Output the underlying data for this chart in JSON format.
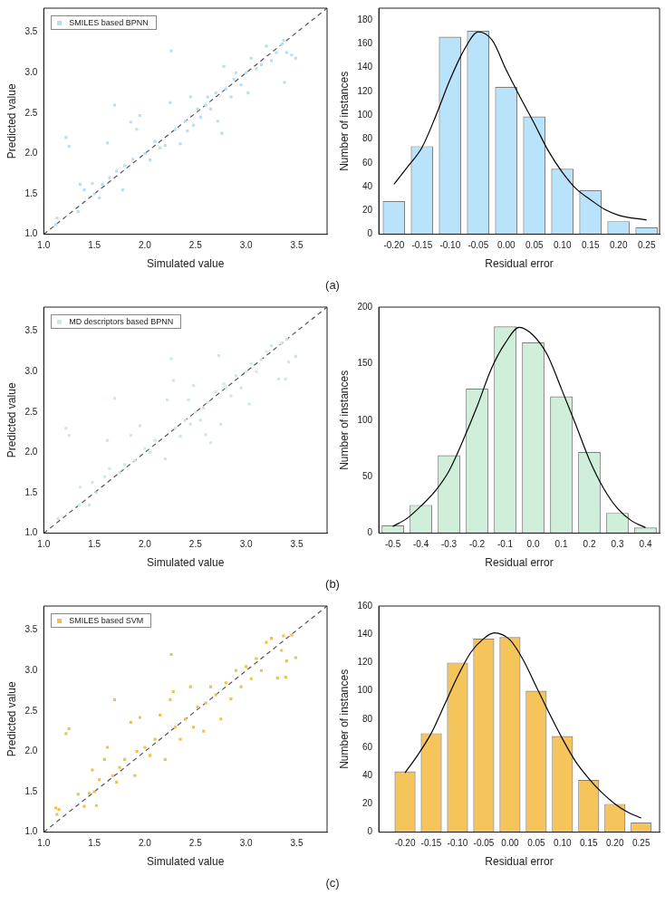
{
  "chart_data": [
    {
      "type": "scatter",
      "xlabel": "Simulated value",
      "ylabel": "Predicted value",
      "xlim": [
        1.0,
        3.8
      ],
      "ylim": [
        1.0,
        3.8
      ],
      "xticks": [
        {
          "value": 1.0,
          "label": "1.0"
        },
        {
          "value": 1.5,
          "label": "1.5"
        },
        {
          "value": 2.0,
          "label": "2.0"
        },
        {
          "value": 2.5,
          "label": "2.5"
        },
        {
          "value": 3.0,
          "label": "3.0"
        },
        {
          "value": 3.5,
          "label": "3.5"
        }
      ],
      "yticks": [
        {
          "value": 1.0,
          "label": "1.0"
        },
        {
          "value": 1.5,
          "label": "1.5"
        },
        {
          "value": 2.0,
          "label": "2.0"
        },
        {
          "value": 2.5,
          "label": "2.5"
        },
        {
          "value": 3.0,
          "label": "3.0"
        },
        {
          "value": 3.5,
          "label": "3.5"
        }
      ],
      "grid": false,
      "legend": "top left",
      "marker": "square",
      "annotations": [
        "(a)"
      ],
      "series": [
        {
          "name": "SMILES based BPNN",
          "color": "#b3dff8",
          "x": [
            1.12,
            1.13,
            1.22,
            1.25,
            1.34,
            1.36,
            1.4,
            1.48,
            1.5,
            1.55,
            1.58,
            1.63,
            1.65,
            1.7,
            1.72,
            1.78,
            1.8,
            1.86,
            1.88,
            1.92,
            1.95,
            2.0,
            2.05,
            2.1,
            2.15,
            2.2,
            2.25,
            2.26,
            2.3,
            2.35,
            2.4,
            2.45,
            2.48,
            2.52,
            2.55,
            2.6,
            2.65,
            2.7,
            2.72,
            2.76,
            2.78,
            2.8,
            2.85,
            2.9,
            2.95,
            3.0,
            3.02,
            3.05,
            3.1,
            3.15,
            3.2,
            3.25,
            3.3,
            3.35,
            3.38,
            3.4,
            3.45,
            3.49,
            3.37,
            2.62,
            2.88,
            2.42
          ],
          "values": [
            1.12,
            1.2,
            2.2,
            2.09,
            1.28,
            1.62,
            1.55,
            1.63,
            1.5,
            1.45,
            1.62,
            2.13,
            1.7,
            2.6,
            1.78,
            1.55,
            1.85,
            2.39,
            1.93,
            2.3,
            2.47,
            2.0,
            1.92,
            2.15,
            2.07,
            2.1,
            2.63,
            3.27,
            2.3,
            2.12,
            2.4,
            2.7,
            2.35,
            2.55,
            2.45,
            2.6,
            2.55,
            2.75,
            2.4,
            2.25,
            3.08,
            2.8,
            2.7,
            3.0,
            2.85,
            3.0,
            2.75,
            3.18,
            3.05,
            3.1,
            3.33,
            3.15,
            3.25,
            3.35,
            2.88,
            3.25,
            3.22,
            3.18,
            3.4,
            2.7,
            2.92,
            2.28
          ]
        },
        {
          "type": "line",
          "color": "#555555",
          "line_style": "dashed",
          "marker": "none",
          "x": [
            1.0,
            3.8
          ],
          "values": [
            1.0,
            3.8
          ]
        }
      ]
    },
    {
      "type": "bar",
      "xlabel": "Residual error",
      "ylabel": "Number of instances",
      "xlim": [
        -0.227,
        0.273
      ],
      "ylim": [
        0,
        190
      ],
      "xticks": [
        {
          "value": -0.2,
          "label": "-0.20"
        },
        {
          "value": -0.15,
          "label": "-0.15"
        },
        {
          "value": -0.1,
          "label": "-0.10"
        },
        {
          "value": -0.05,
          "label": "-0.05"
        },
        {
          "value": 0,
          "label": "0.00"
        },
        {
          "value": 0.05,
          "label": "0.05"
        },
        {
          "value": 0.1,
          "label": "0.10"
        },
        {
          "value": 0.15,
          "label": "0.15"
        },
        {
          "value": 0.2,
          "label": "0.20"
        },
        {
          "value": 0.25,
          "label": "0.25"
        }
      ],
      "yticks": [
        0,
        20,
        40,
        60,
        80,
        100,
        120,
        140,
        160,
        180
      ],
      "grid": false,
      "legend": false,
      "series": [
        {
          "type": "bar",
          "color": "#b9e3fa",
          "x": [
            -0.2,
            -0.15,
            -0.1,
            -0.05,
            0,
            0.05,
            0.1,
            0.15,
            0.2,
            0.25
          ],
          "values": [
            28,
            74,
            166,
            171,
            124,
            99,
            55,
            37,
            11,
            6
          ]
        },
        {
          "type": "line",
          "color": "#000000",
          "marker": "none",
          "x": [
            -0.2,
            -0.175,
            -0.15,
            -0.125,
            -0.1,
            -0.075,
            -0.05,
            -0.025,
            0,
            0.025,
            0.05,
            0.075,
            0.1,
            0.125,
            0.15,
            0.175,
            0.2,
            0.25
          ],
          "values": [
            42,
            57,
            73,
            100,
            130,
            155,
            170,
            163,
            138,
            115,
            93,
            70,
            52,
            38,
            29,
            21,
            16,
            12
          ]
        }
      ]
    },
    {
      "type": "scatter",
      "xlabel": "Simulated value",
      "ylabel": "Predicted value",
      "xlim": [
        1.0,
        3.8
      ],
      "ylim": [
        1.0,
        3.8
      ],
      "xticks": [
        {
          "value": 1.0,
          "label": "1.0"
        },
        {
          "value": 1.5,
          "label": "1.5"
        },
        {
          "value": 2.0,
          "label": "2.0"
        },
        {
          "value": 2.5,
          "label": "2.5"
        },
        {
          "value": 3.0,
          "label": "3.0"
        },
        {
          "value": 3.5,
          "label": "3.5"
        }
      ],
      "yticks": [
        {
          "value": 1.0,
          "label": "1.0"
        },
        {
          "value": 1.5,
          "label": "1.5"
        },
        {
          "value": 2.0,
          "label": "2.0"
        },
        {
          "value": 2.5,
          "label": "2.5"
        },
        {
          "value": 3.0,
          "label": "3.0"
        },
        {
          "value": 3.5,
          "label": "3.5"
        }
      ],
      "grid": false,
      "legend": "top left",
      "marker": "square",
      "annotations": [
        "(b)"
      ],
      "series": [
        {
          "name": "MD descriptors based BPNN",
          "color": "#c9ecd8",
          "x": [
            1.14,
            1.22,
            1.25,
            1.35,
            1.36,
            1.45,
            1.48,
            1.52,
            1.6,
            1.63,
            1.65,
            1.7,
            1.75,
            1.8,
            1.86,
            1.9,
            1.95,
            2.0,
            2.05,
            2.1,
            2.2,
            2.22,
            2.26,
            2.28,
            2.3,
            2.35,
            2.4,
            2.43,
            2.48,
            2.5,
            2.55,
            2.6,
            2.62,
            2.65,
            2.7,
            2.73,
            2.75,
            2.8,
            2.85,
            2.9,
            2.95,
            3.0,
            3.03,
            3.05,
            3.1,
            3.15,
            3.2,
            3.25,
            3.32,
            3.35,
            3.39,
            3.4,
            3.42,
            3.49,
            2.58,
            2.78,
            2.45
          ],
          "values": [
            1.18,
            2.3,
            2.21,
            1.35,
            1.57,
            1.35,
            1.63,
            1.5,
            1.7,
            2.15,
            1.8,
            2.67,
            1.75,
            1.85,
            2.21,
            1.9,
            2.33,
            2.05,
            2.0,
            2.15,
            1.92,
            2.65,
            3.16,
            2.89,
            2.3,
            2.2,
            2.4,
            2.65,
            2.83,
            2.5,
            2.4,
            2.22,
            2.62,
            2.12,
            2.75,
            3.2,
            2.35,
            2.8,
            2.7,
            2.95,
            2.8,
            3.0,
            2.6,
            3.1,
            3.0,
            3.15,
            3.25,
            3.32,
            2.91,
            3.35,
            2.91,
            3.4,
            3.12,
            3.19,
            2.55,
            2.85,
            2.35
          ]
        },
        {
          "type": "line",
          "color": "#555555",
          "line_style": "dashed",
          "marker": "none",
          "x": [
            1.0,
            3.8
          ],
          "values": [
            1.0,
            3.8
          ]
        }
      ]
    },
    {
      "type": "bar",
      "xlabel": "Residual error",
      "ylabel": "Number of instances",
      "xlim": [
        -0.55,
        0.45
      ],
      "ylim": [
        0,
        200
      ],
      "xticks": [
        {
          "value": -0.5,
          "label": "-0.5"
        },
        {
          "value": -0.4,
          "label": "-0.4"
        },
        {
          "value": -0.3,
          "label": "-0.3"
        },
        {
          "value": -0.2,
          "label": "-0.2"
        },
        {
          "value": -0.1,
          "label": "-0.1"
        },
        {
          "value": 0,
          "label": "0.0"
        },
        {
          "value": 0.1,
          "label": "0.1"
        },
        {
          "value": 0.2,
          "label": "0.2"
        },
        {
          "value": 0.3,
          "label": "0.3"
        },
        {
          "value": 0.4,
          "label": "0.4"
        }
      ],
      "yticks": [
        0,
        50,
        100,
        150,
        200
      ],
      "grid": false,
      "legend": false,
      "series": [
        {
          "type": "bar",
          "color": "#d0efdb",
          "x": [
            -0.5,
            -0.4,
            -0.3,
            -0.2,
            -0.1,
            0,
            0.1,
            0.2,
            0.3,
            0.4
          ],
          "values": [
            7,
            25,
            69,
            128,
            183,
            169,
            121,
            72,
            18,
            5
          ]
        },
        {
          "type": "line",
          "color": "#000000",
          "marker": "none",
          "x": [
            -0.5,
            -0.45,
            -0.4,
            -0.35,
            -0.3,
            -0.25,
            -0.2,
            -0.15,
            -0.1,
            -0.05,
            0,
            0.05,
            0.1,
            0.15,
            0.2,
            0.25,
            0.3,
            0.35,
            0.4
          ],
          "values": [
            6,
            13,
            24,
            37,
            55,
            82,
            112,
            145,
            168,
            182,
            175,
            158,
            128,
            97,
            65,
            40,
            22,
            11,
            5
          ]
        }
      ]
    },
    {
      "type": "scatter",
      "xlabel": "Simulated value",
      "ylabel": "Predicted value",
      "xlim": [
        1.0,
        3.8
      ],
      "ylim": [
        1.0,
        3.8
      ],
      "xticks": [
        {
          "value": 1.0,
          "label": "1.0"
        },
        {
          "value": 1.5,
          "label": "1.5"
        },
        {
          "value": 2.0,
          "label": "2.0"
        },
        {
          "value": 2.5,
          "label": "2.5"
        },
        {
          "value": 3.0,
          "label": "3.0"
        },
        {
          "value": 3.5,
          "label": "3.5"
        }
      ],
      "yticks": [
        {
          "value": 1.0,
          "label": "1.0"
        },
        {
          "value": 1.5,
          "label": "1.5"
        },
        {
          "value": 2.0,
          "label": "2.0"
        },
        {
          "value": 2.5,
          "label": "2.5"
        },
        {
          "value": 3.0,
          "label": "3.0"
        },
        {
          "value": 3.5,
          "label": "3.5"
        }
      ],
      "grid": false,
      "legend": "top left",
      "marker": "square",
      "annotations": [
        "(c)"
      ],
      "series": [
        {
          "name": "SMILES based SVM",
          "color": "#f5c04a",
          "x": [
            1.12,
            1.13,
            1.15,
            1.22,
            1.25,
            1.34,
            1.4,
            1.45,
            1.48,
            1.5,
            1.52,
            1.55,
            1.6,
            1.63,
            1.68,
            1.7,
            1.72,
            1.75,
            1.8,
            1.86,
            1.9,
            1.92,
            1.95,
            2.0,
            2.05,
            2.1,
            2.15,
            2.2,
            2.25,
            2.26,
            2.28,
            2.3,
            2.35,
            2.4,
            2.45,
            2.48,
            2.52,
            2.58,
            2.6,
            2.65,
            2.7,
            2.75,
            2.8,
            2.85,
            2.9,
            2.95,
            3.0,
            3.05,
            3.1,
            3.15,
            3.2,
            3.25,
            3.31,
            3.35,
            3.37,
            3.39,
            3.4,
            3.45,
            3.49
          ],
          "values": [
            1.3,
            1.22,
            1.28,
            2.22,
            2.28,
            1.47,
            1.32,
            1.48,
            1.77,
            1.5,
            1.33,
            1.65,
            1.9,
            2.05,
            1.7,
            2.64,
            1.62,
            1.8,
            1.9,
            2.36,
            1.7,
            2.0,
            2.42,
            2.05,
            1.95,
            2.15,
            2.45,
            1.9,
            2.64,
            3.2,
            2.74,
            2.3,
            2.15,
            2.4,
            2.8,
            2.3,
            2.55,
            2.25,
            2.6,
            2.8,
            2.7,
            2.4,
            2.85,
            2.65,
            3.0,
            2.8,
            3.05,
            2.9,
            3.15,
            3.0,
            3.35,
            3.4,
            2.91,
            3.25,
            3.43,
            2.92,
            3.12,
            3.44,
            3.16
          ]
        },
        {
          "type": "line",
          "color": "#555555",
          "line_style": "dashed",
          "marker": "none",
          "x": [
            1.0,
            3.8
          ],
          "values": [
            1.0,
            3.8
          ]
        }
      ]
    },
    {
      "type": "bar",
      "xlabel": "Residual error",
      "ylabel": "Number of instances",
      "xlim": [
        -0.25,
        0.285
      ],
      "ylim": [
        0,
        160
      ],
      "xticks": [
        {
          "value": -0.2,
          "label": "-0.20"
        },
        {
          "value": -0.15,
          "label": "-0.15"
        },
        {
          "value": -0.1,
          "label": "-0.10"
        },
        {
          "value": -0.05,
          "label": "-0.05"
        },
        {
          "value": 0,
          "label": "0.00"
        },
        {
          "value": 0.05,
          "label": "0.05"
        },
        {
          "value": 0.1,
          "label": "0.10"
        },
        {
          "value": 0.15,
          "label": "0.15"
        },
        {
          "value": 0.2,
          "label": "0.20"
        },
        {
          "value": 0.25,
          "label": "0.25"
        }
      ],
      "yticks": [
        0,
        20,
        40,
        60,
        80,
        100,
        120,
        140,
        160
      ],
      "grid": false,
      "legend": false,
      "series": [
        {
          "type": "bar",
          "color": "#f5c45a",
          "x": [
            -0.2,
            -0.15,
            -0.1,
            -0.05,
            0,
            0.05,
            0.1,
            0.15,
            0.2,
            0.25
          ],
          "values": [
            43,
            70,
            120,
            137,
            138,
            100,
            68,
            37,
            20,
            7
          ]
        },
        {
          "type": "line",
          "color": "#000000",
          "marker": "none",
          "x": [
            -0.2,
            -0.175,
            -0.15,
            -0.125,
            -0.1,
            -0.075,
            -0.05,
            -0.03,
            0,
            0.025,
            0.05,
            0.075,
            0.1,
            0.125,
            0.15,
            0.175,
            0.2,
            0.225,
            0.25
          ],
          "values": [
            42,
            55,
            70,
            90,
            110,
            127,
            137,
            141,
            136,
            122,
            103,
            84,
            66,
            50,
            38,
            28,
            20,
            14,
            10
          ]
        }
      ]
    }
  ]
}
